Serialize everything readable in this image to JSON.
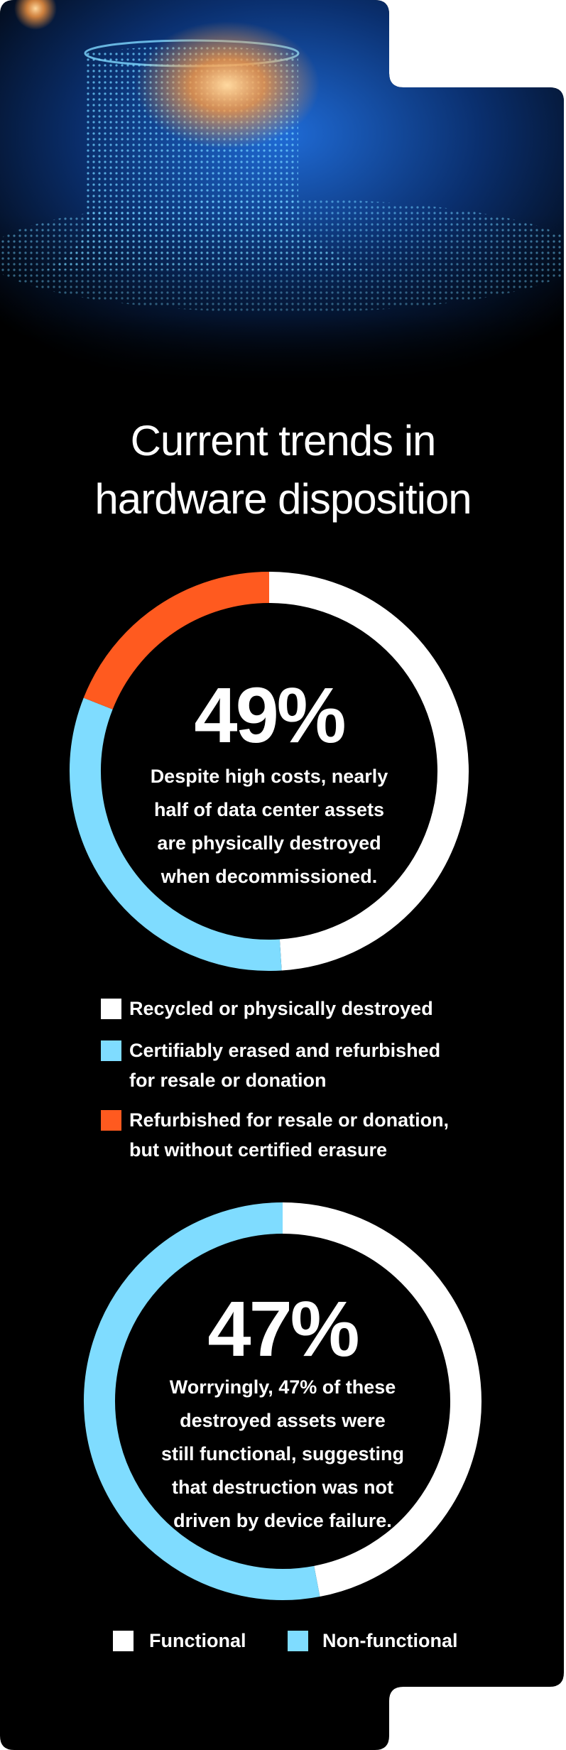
{
  "title": "Current trends in\nhardware disposition",
  "chart_data": [
    {
      "type": "donut",
      "center_label": "49%",
      "description": "Despite high costs, nearly\nhalf of data center assets\nare physically destroyed\nwhen decommissioned.",
      "categories": [
        "Recycled or physically destroyed",
        "Certifiably erased and refurbished\nfor resale or donation",
        "Refurbished for resale or donation,\nbut without certified erasure"
      ],
      "values": [
        49,
        32,
        19
      ],
      "colors": [
        "#ffffff",
        "#7fdcff",
        "#ff5a1f"
      ]
    },
    {
      "type": "donut",
      "center_label": "47%",
      "description": "Worryingly, 47% of these\ndestroyed assets were\nstill functional, suggesting\nthat destruction was not\ndriven by device failure.",
      "categories": [
        "Functional",
        "Non-functional"
      ],
      "values": [
        47,
        53
      ],
      "colors": [
        "#ffffff",
        "#7fdcff"
      ]
    }
  ]
}
